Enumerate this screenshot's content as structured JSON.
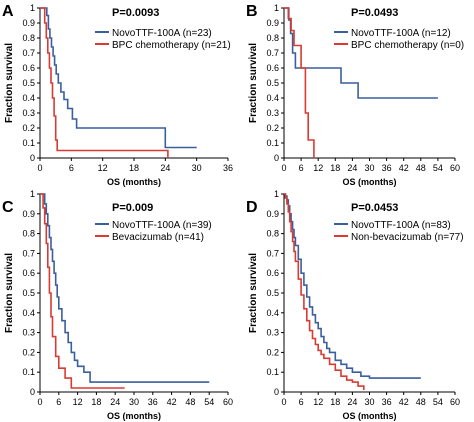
{
  "colors": {
    "novo": "#3a5f9e",
    "control": "#d93a32"
  },
  "chart_data": [
    {
      "type": "line",
      "panel_letter": "A",
      "p_value": "P=0.0093",
      "xlabel": "OS (months)",
      "ylabel": "Fraction survival",
      "xlim": [
        0,
        36
      ],
      "ylim": [
        0,
        1.0
      ],
      "xticks": [
        0,
        6,
        12,
        18,
        24,
        30,
        36
      ],
      "yticks": [
        0,
        0.1,
        0.2,
        0.3,
        0.4,
        0.5,
        0.6,
        0.7,
        0.8,
        0.9,
        1.0
      ],
      "legend_position": "top-right",
      "series": [
        {
          "name": "NovoTTF-100A (n=23)",
          "color": "#3a5f9e",
          "x": [
            0,
            1.0,
            1.3,
            1.6,
            1.9,
            2.2,
            2.5,
            2.8,
            3.1,
            3.5,
            4.0,
            4.6,
            5.3,
            6.2,
            7.0,
            8.0,
            16.0,
            24.0,
            30.0
          ],
          "y": [
            1.0,
            1.0,
            0.95,
            0.86,
            0.8,
            0.74,
            0.68,
            0.62,
            0.56,
            0.5,
            0.44,
            0.39,
            0.33,
            0.26,
            0.2,
            0.2,
            0.2,
            0.07,
            0.07
          ]
        },
        {
          "name": "BPC chemotherapy (n=21)",
          "color": "#d93a32",
          "x": [
            0,
            0.6,
            0.9,
            1.2,
            1.5,
            1.8,
            2.1,
            2.4,
            2.7,
            3.0,
            3.3,
            24.5
          ],
          "y": [
            1.0,
            1.0,
            0.9,
            0.8,
            0.7,
            0.6,
            0.5,
            0.4,
            0.28,
            0.12,
            0.05,
            0.0
          ]
        }
      ]
    },
    {
      "type": "line",
      "panel_letter": "B",
      "p_value": "P=0.0493",
      "xlabel": "OS (months)",
      "ylabel": "Fraction survival",
      "xlim": [
        0,
        60
      ],
      "ylim": [
        0,
        1.0
      ],
      "xticks": [
        0,
        6,
        12,
        18,
        24,
        30,
        36,
        42,
        48,
        54,
        60
      ],
      "yticks": [
        0,
        0.1,
        0.2,
        0.3,
        0.4,
        0.5,
        0.6,
        0.7,
        0.8,
        0.9,
        1.0
      ],
      "legend_position": "top-right",
      "series": [
        {
          "name": "NovoTTF-100A (n=12)",
          "color": "#3a5f9e",
          "x": [
            0,
            1.0,
            1.7,
            2.3,
            3.0,
            4.0,
            20.0,
            26.0,
            54.0
          ],
          "y": [
            1.0,
            1.0,
            0.92,
            0.83,
            0.7,
            0.6,
            0.5,
            0.4,
            0.4
          ]
        },
        {
          "name": "BPC chemotherapy (n=0)",
          "color": "#d93a32",
          "x": [
            0,
            0.5,
            1.5,
            2.5,
            3.5,
            6.0,
            7.5,
            8.5,
            10.5
          ],
          "y": [
            1.0,
            1.0,
            0.93,
            0.85,
            0.75,
            0.6,
            0.3,
            0.12,
            0.0
          ]
        }
      ]
    },
    {
      "type": "line",
      "panel_letter": "C",
      "p_value": "P=0.009",
      "xlabel": "OS (months)",
      "ylabel": "Fraction survival",
      "xlim": [
        0,
        60
      ],
      "ylim": [
        0,
        1.0
      ],
      "xticks": [
        0,
        6,
        12,
        18,
        24,
        30,
        36,
        42,
        48,
        54,
        60
      ],
      "yticks": [
        0,
        0.1,
        0.2,
        0.3,
        0.4,
        0.5,
        0.6,
        0.7,
        0.8,
        0.9,
        1.0
      ],
      "legend_position": "top-right",
      "series": [
        {
          "name": "NovoTTF-100A (n=39)",
          "color": "#3a5f9e",
          "x": [
            0,
            1.0,
            1.5,
            2.0,
            2.5,
            3.0,
            3.5,
            4.0,
            4.5,
            5.0,
            5.5,
            6.0,
            7.0,
            8.0,
            9.0,
            10.0,
            11.0,
            12.0,
            14.0,
            16.0,
            54.0
          ],
          "y": [
            1.0,
            1.0,
            0.95,
            0.9,
            0.84,
            0.78,
            0.72,
            0.66,
            0.6,
            0.54,
            0.48,
            0.42,
            0.36,
            0.3,
            0.25,
            0.2,
            0.16,
            0.13,
            0.1,
            0.05,
            0.05
          ]
        },
        {
          "name": "Bevacizumab (n=41)",
          "color": "#d93a32",
          "x": [
            0,
            0.5,
            1.0,
            1.5,
            2.0,
            2.5,
            3.0,
            3.5,
            4.0,
            5.0,
            6.0,
            8.0,
            10.0,
            27.0
          ],
          "y": [
            1.0,
            1.0,
            0.93,
            0.85,
            0.75,
            0.63,
            0.5,
            0.38,
            0.28,
            0.18,
            0.12,
            0.07,
            0.02,
            0.02
          ]
        }
      ]
    },
    {
      "type": "line",
      "panel_letter": "D",
      "p_value": "P=0.0453",
      "xlabel": "OS (months)",
      "ylabel": "Fraction survival",
      "xlim": [
        0,
        60
      ],
      "ylim": [
        0,
        1.0
      ],
      "xticks": [
        0,
        6,
        12,
        18,
        24,
        30,
        36,
        42,
        48,
        54,
        60
      ],
      "yticks": [
        0,
        0.1,
        0.2,
        0.3,
        0.4,
        0.5,
        0.6,
        0.7,
        0.8,
        0.9,
        1.0
      ],
      "legend_position": "top-right",
      "series": [
        {
          "name": "NovoTTF-100A (n=83)",
          "color": "#3a5f9e",
          "x": [
            0,
            0.5,
            1.0,
            1.5,
            2.0,
            2.5,
            3.0,
            3.5,
            4.0,
            5.0,
            6.0,
            7.0,
            8.0,
            9.0,
            10.0,
            11.0,
            12.0,
            13.0,
            14.0,
            15.0,
            16.0,
            18.0,
            20.0,
            22.0,
            24.0,
            27.0,
            30.0,
            48.0
          ],
          "y": [
            1.0,
            0.99,
            0.97,
            0.94,
            0.9,
            0.86,
            0.82,
            0.78,
            0.74,
            0.67,
            0.6,
            0.54,
            0.48,
            0.43,
            0.39,
            0.35,
            0.32,
            0.28,
            0.25,
            0.22,
            0.2,
            0.16,
            0.14,
            0.12,
            0.1,
            0.08,
            0.07,
            0.07
          ]
        },
        {
          "name": "Non-bevacizumab (n=77)",
          "color": "#d93a32",
          "x": [
            0,
            0.5,
            1.0,
            1.5,
            2.0,
            2.5,
            3.0,
            3.5,
            4.0,
            5.0,
            6.0,
            7.0,
            8.0,
            9.0,
            10.0,
            11.0,
            12.0,
            13.0,
            14.0,
            16.0,
            18.0,
            20.0,
            22.0,
            24.0,
            26.0,
            28.0
          ],
          "y": [
            1.0,
            0.98,
            0.95,
            0.91,
            0.86,
            0.81,
            0.76,
            0.71,
            0.66,
            0.57,
            0.49,
            0.42,
            0.36,
            0.31,
            0.27,
            0.24,
            0.21,
            0.19,
            0.17,
            0.14,
            0.11,
            0.08,
            0.06,
            0.05,
            0.03,
            0.01
          ]
        }
      ]
    }
  ]
}
